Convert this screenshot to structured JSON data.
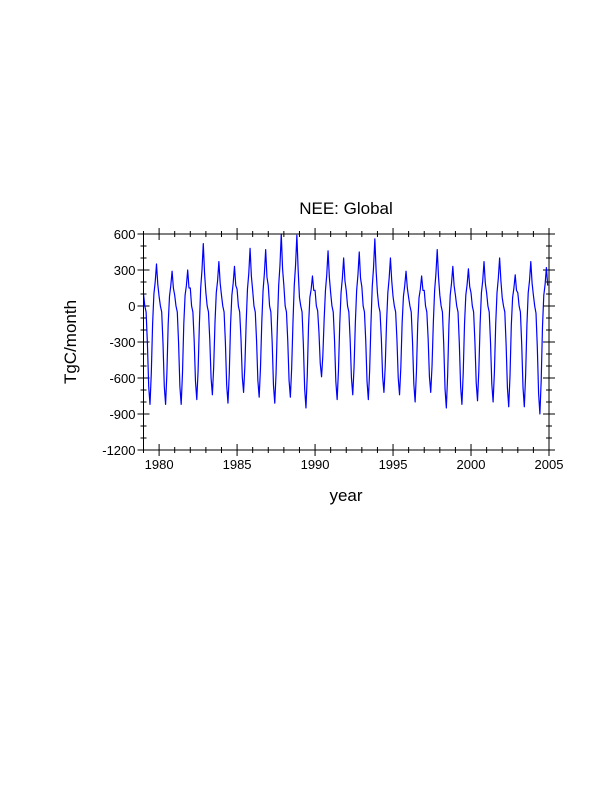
{
  "chart_data": {
    "type": "line",
    "title": "NEE: Global",
    "xlabel": "year",
    "ylabel": "TgC/month",
    "xlim": [
      1979,
      2005
    ],
    "ylim": [
      -1200,
      600
    ],
    "x_ticks": [
      1980,
      1985,
      1990,
      1995,
      2000,
      2005
    ],
    "y_ticks": [
      600,
      300,
      0,
      -300,
      -600,
      -900,
      -1200
    ],
    "grid": false,
    "line_color": "#0000ff",
    "x_start": 1979,
    "sampling": "monthly",
    "series": [
      {
        "values_by_year": {
          "1979": [
            100,
            0,
            -50,
            -310,
            -670,
            -820,
            -560,
            -150,
            100,
            200,
            350,
            180
          ],
          "1980": [
            80,
            0,
            -50,
            -310,
            -670,
            -820,
            -560,
            -150,
            80,
            170,
            290,
            150
          ],
          "1981": [
            90,
            0,
            -50,
            -310,
            -670,
            -820,
            -560,
            -150,
            90,
            170,
            300,
            150
          ],
          "1982": [
            150,
            0,
            -50,
            -290,
            -630,
            -780,
            -540,
            -150,
            150,
            300,
            520,
            270
          ],
          "1983": [
            110,
            0,
            -50,
            -280,
            -600,
            -740,
            -510,
            -140,
            110,
            210,
            370,
            190
          ],
          "1984": [
            90,
            0,
            -50,
            -300,
            -660,
            -810,
            -560,
            -150,
            90,
            190,
            330,
            170
          ],
          "1985": [
            140,
            0,
            -50,
            -270,
            -590,
            -720,
            -500,
            -140,
            140,
            270,
            480,
            250
          ],
          "1986": [
            130,
            0,
            -50,
            -290,
            -620,
            -760,
            -520,
            -140,
            130,
            270,
            470,
            240
          ],
          "1987": [
            170,
            0,
            -50,
            -300,
            -660,
            -810,
            -560,
            -150,
            170,
            340,
            600,
            310
          ],
          "1988": [
            170,
            0,
            -50,
            -290,
            -620,
            -760,
            -520,
            -140,
            170,
            340,
            590,
            300
          ],
          "1989": [
            70,
            0,
            -50,
            -320,
            -690,
            -850,
            -580,
            -160,
            70,
            140,
            250,
            130
          ],
          "1990": [
            130,
            0,
            -40,
            -220,
            -480,
            -590,
            -410,
            -110,
            130,
            260,
            460,
            240
          ],
          "1991": [
            110,
            0,
            -50,
            -290,
            -630,
            -780,
            -540,
            -150,
            110,
            230,
            400,
            210
          ],
          "1992": [
            130,
            0,
            -50,
            -280,
            -600,
            -740,
            -510,
            -140,
            130,
            260,
            450,
            230
          ],
          "1993": [
            160,
            0,
            -50,
            -290,
            -630,
            -780,
            -540,
            -150,
            160,
            320,
            560,
            290
          ],
          "1994": [
            110,
            0,
            -50,
            -270,
            -590,
            -720,
            -500,
            -140,
            110,
            230,
            400,
            210
          ],
          "1995": [
            80,
            0,
            -50,
            -280,
            -600,
            -740,
            -510,
            -140,
            80,
            170,
            290,
            150
          ],
          "1996": [
            70,
            0,
            -50,
            -300,
            -650,
            -800,
            -550,
            -150,
            70,
            140,
            250,
            130
          ],
          "1997": [
            130,
            0,
            -50,
            -270,
            -590,
            -720,
            -500,
            -140,
            130,
            270,
            470,
            240
          ],
          "1998": [
            90,
            0,
            -50,
            -320,
            -690,
            -850,
            -580,
            -160,
            90,
            190,
            330,
            170
          ],
          "1999": [
            90,
            0,
            -50,
            -310,
            -670,
            -820,
            -560,
            -150,
            90,
            180,
            310,
            160
          ],
          "2000": [
            110,
            0,
            -50,
            -300,
            -640,
            -790,
            -540,
            -150,
            110,
            210,
            370,
            190
          ],
          "2001": [
            110,
            0,
            -50,
            -300,
            -650,
            -800,
            -550,
            -150,
            110,
            230,
            400,
            210
          ],
          "2002": [
            70,
            0,
            -50,
            -320,
            -680,
            -840,
            -580,
            -160,
            70,
            150,
            260,
            130
          ],
          "2003": [
            110,
            0,
            -50,
            -320,
            -680,
            -840,
            -580,
            -160,
            110,
            210,
            370,
            190
          ],
          "2004": [
            90,
            0,
            -60,
            -340,
            -730,
            -900,
            -620,
            -170,
            90,
            180,
            320,
            170
          ]
        }
      }
    ]
  }
}
